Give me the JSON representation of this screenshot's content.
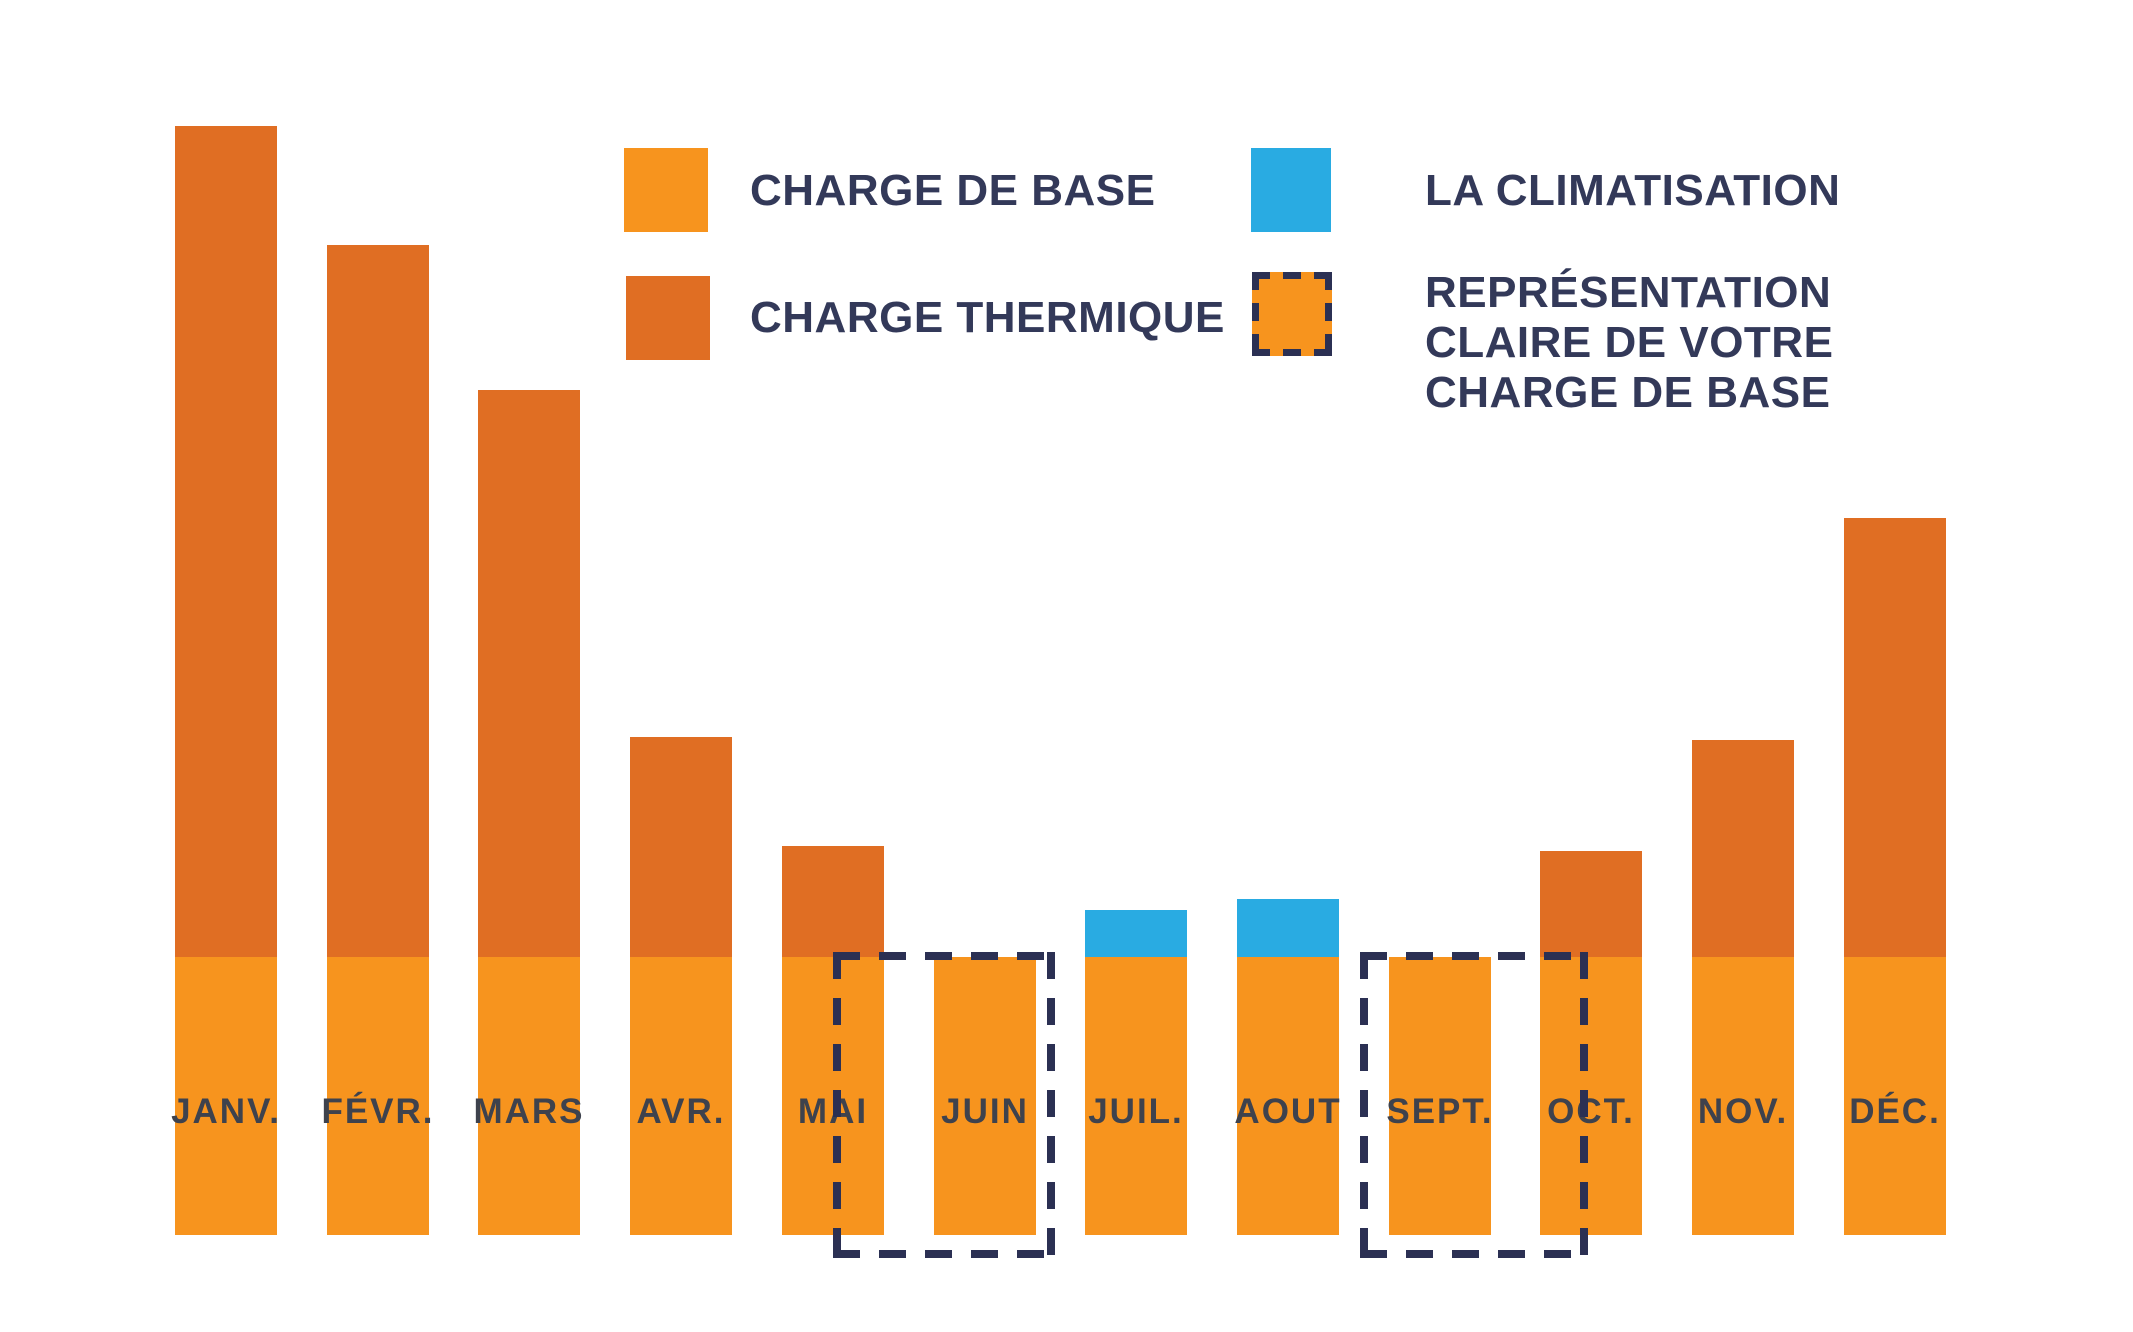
{
  "colors": {
    "background": "#FFFFFF",
    "base": "#F7941E",
    "thermique": "#E06E23",
    "climatisation": "#29ABE2",
    "legend_text": "#333959",
    "month_text": "#3E424D",
    "dash": "#2B3053"
  },
  "legend": {
    "items": [
      {
        "label": "CHARGE DE BASE",
        "swatch": "solid",
        "color": "#F7941E"
      },
      {
        "label": "CHARGE THERMIQUE",
        "swatch": "solid",
        "color": "#E06E23"
      },
      {
        "label": "LA CLIMATISATION",
        "swatch": "solid",
        "color": "#29ABE2"
      },
      {
        "label": "REPRÉSENTATION\nCLAIRE DE VOTRE\nCHARGE DE BASE",
        "swatch": "dashed-outline",
        "color": "#F7941E",
        "border_color": "#2B3053"
      }
    ]
  },
  "chart_data": {
    "type": "bar",
    "stacked": true,
    "title": "",
    "xlabel": "",
    "ylabel": "",
    "axes_visible": false,
    "grid": false,
    "unit_note": "relative units, monthly base load = 100",
    "categories": [
      "JANV.",
      "FÉVR.",
      "MARS",
      "AVR.",
      "MAI",
      "JUIN",
      "JUIL.",
      "AOUT",
      "SEPT.",
      "OCT.",
      "NOV.",
      "DÉC."
    ],
    "series": [
      {
        "name": "CHARGE DE BASE",
        "color": "#F7941E",
        "values": [
          100,
          100,
          100,
          100,
          100,
          100,
          100,
          100,
          100,
          100,
          100,
          100
        ]
      },
      {
        "name": "CHARGE THERMIQUE",
        "color": "#E06E23",
        "values": [
          299,
          256,
          204,
          79,
          40,
          0,
          0,
          0,
          0,
          38,
          78,
          158
        ]
      },
      {
        "name": "LA CLIMATISATION",
        "color": "#29ABE2",
        "values": [
          0,
          0,
          0,
          0,
          0,
          0,
          17,
          21,
          0,
          0,
          0,
          0
        ]
      }
    ],
    "annotations": [
      {
        "type": "dashed-box",
        "label": "Représentation claire de votre charge de base",
        "months": [
          "MAI",
          "JUIN"
        ]
      },
      {
        "type": "dashed-box",
        "label": "Représentation claire de votre charge de base",
        "months": [
          "SEPT.",
          "OCT."
        ]
      }
    ]
  }
}
